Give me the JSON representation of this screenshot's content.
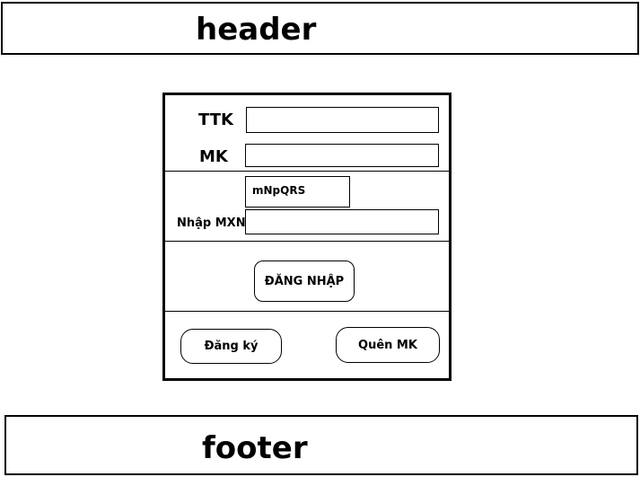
{
  "header": {
    "title": "header"
  },
  "footer": {
    "title": "footer"
  },
  "login": {
    "username_label": "TTK",
    "username_value": "",
    "password_label": "MK",
    "password_value": "",
    "captcha_code": "mNpQRS",
    "captcha_label": "Nhập MXN",
    "captcha_value": "",
    "login_button": "ĐĂNG NHẬP",
    "register_button": "Đăng ký",
    "forgot_button": "Quên MK"
  }
}
